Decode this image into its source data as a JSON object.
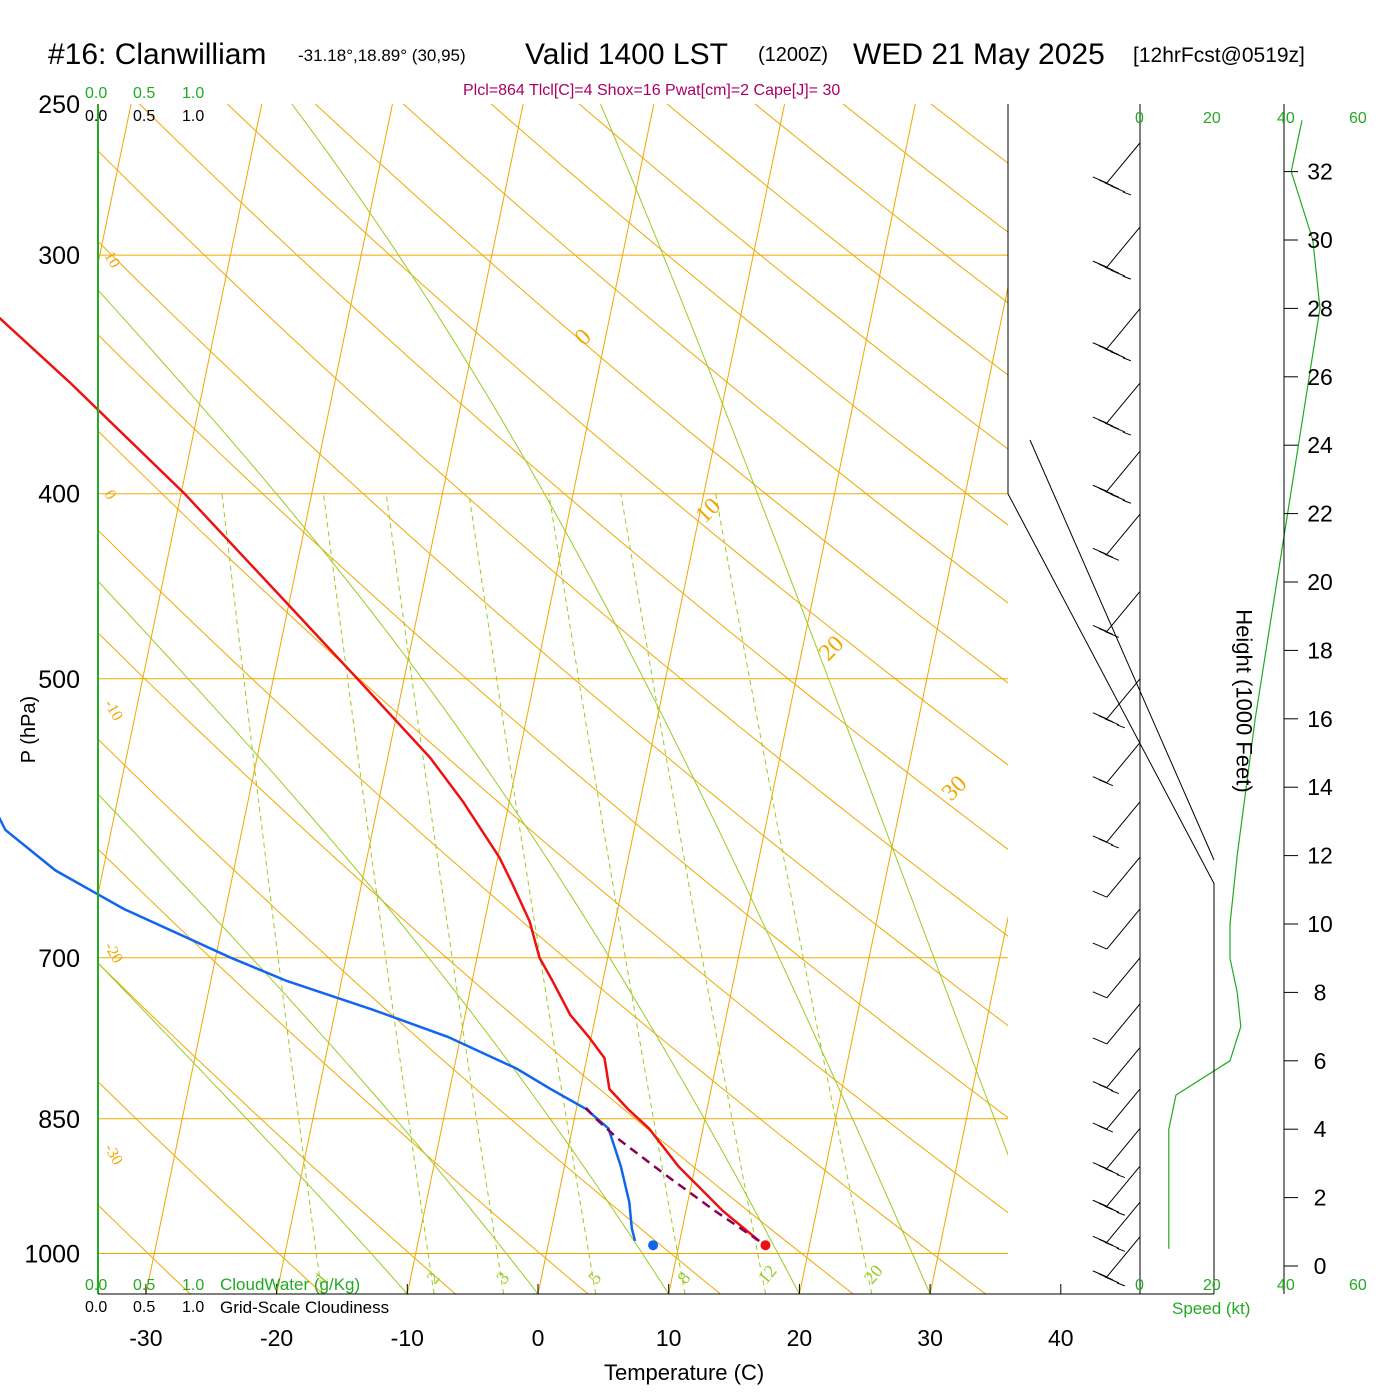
{
  "header": {
    "station": "#16: Clanwilliam",
    "coords": "-31.18°,18.89° (30,95)",
    "valid": "Valid 1400 LST",
    "utc": "(1200Z)",
    "date": "WED 21 May 2025",
    "forecast": "[12hrFcst@0519z]",
    "indices": "Plcl=864 Tlcl[C]=4 Shox=16 Pwat[cm]=2 Cape[J]= 30"
  },
  "colors": {
    "temperature": "#ee1111",
    "dewpoint": "#1166ee",
    "parcel": "#880055",
    "isotherm": "#f0a800",
    "mixing_ratio": "#99cc22",
    "cloud_axis": "#22aa22",
    "indices_text": "#aa0066"
  },
  "chart_data": {
    "type": "line",
    "subtype": "skew-T log-P",
    "xlabel": "Temperature (C)",
    "ylabel": "P (hPa)",
    "y2label": "Height (1000 Feet)",
    "x_ticks": [
      -30,
      -20,
      -10,
      0,
      10,
      20,
      30,
      40
    ],
    "p_ticks": [
      250,
      300,
      400,
      500,
      700,
      850,
      1000
    ],
    "height_ticks": [
      0,
      2,
      4,
      6,
      8,
      10,
      12,
      14,
      16,
      18,
      20,
      22,
      24,
      26,
      28,
      30,
      32
    ],
    "skewed_isotherm_labels": [
      {
        "text": "10",
        "temp": 10,
        "p": 300,
        "side": "left"
      },
      {
        "text": "0",
        "temp": 0,
        "p": 400,
        "side": "left"
      },
      {
        "text": "-10",
        "temp": -10,
        "p": 515,
        "side": "left"
      },
      {
        "text": "-20",
        "temp": -20,
        "p": 690,
        "side": "left"
      },
      {
        "text": "-30",
        "temp": -30,
        "p": 880,
        "side": "left"
      },
      {
        "text": "0",
        "temp": 0,
        "p": 335,
        "side": "right"
      },
      {
        "text": "10",
        "temp": 10,
        "p": 415,
        "side": "right"
      },
      {
        "text": "20",
        "temp": 20,
        "p": 490,
        "side": "right"
      },
      {
        "text": "30",
        "temp": 30,
        "p": 580,
        "side": "right"
      }
    ],
    "mixing_ratio_labels": [
      "1",
      "2",
      "3",
      "5",
      "8",
      "12",
      "20"
    ],
    "mixing_ratios_gkg": [
      1,
      2,
      3,
      5,
      8,
      12,
      20
    ],
    "temperature": {
      "name": "Temperature",
      "p": [
        985,
        950,
        900,
        860,
        840,
        820,
        790,
        770,
        750,
        720,
        700,
        670,
        640,
        620,
        580,
        550,
        500,
        450,
        400,
        350,
        300,
        265
      ],
      "t": [
        16.7,
        13.8,
        10.2,
        7.8,
        6.1,
        4.6,
        4.1,
        2.8,
        1.3,
        -0.2,
        -1.3,
        -2.2,
        -3.7,
        -4.8,
        -7.8,
        -10.5,
        -16.4,
        -23.0,
        -30.4,
        -39.6,
        -50.8,
        -59.5
      ]
    },
    "dewpoint": {
      "name": "Dewpoint",
      "p": [
        985,
        970,
        940,
        900,
        860,
        840,
        820,
        800,
        770,
        745,
        720,
        700,
        660,
        630,
        600,
        575,
        550,
        525,
        500,
        470,
        430,
        400,
        380,
        350,
        330,
        300,
        265
      ],
      "td": [
        7.2,
        6.9,
        6.6,
        5.8,
        4.7,
        2.9,
        0.1,
        -2.6,
        -8.0,
        -13.9,
        -20.5,
        -24.9,
        -33.3,
        -38.7,
        -42.7,
        -44.2,
        -46.3,
        -47.8,
        -49.5,
        -49.5,
        -50.6,
        -54.3,
        -59.1,
        -64.0,
        -67.6,
        -74.3,
        -82.2
      ]
    },
    "parcel": {
      "name": "Parcel",
      "p": [
        985,
        950,
        910,
        870,
        864,
        850,
        835
      ],
      "t": [
        16.7,
        13.2,
        9.3,
        5.4,
        4.9,
        3.7,
        2.6
      ]
    },
    "surface_markers": {
      "p": 990,
      "t": 17.2,
      "td": 8.6
    },
    "wind": {
      "pressures": [
        262,
        290,
        320,
        350,
        380,
        410,
        450,
        500,
        540,
        580,
        620,
        660,
        700,
        740,
        780,
        820,
        860,
        900,
        940,
        980
      ],
      "speeds_kt": [
        35,
        35,
        35,
        35,
        35,
        30,
        30,
        25,
        20,
        15,
        10,
        10,
        10,
        10,
        15,
        20,
        25,
        25,
        25,
        25
      ],
      "speed_profile_height_kft": [
        0.5,
        2,
        4,
        5,
        6,
        7,
        8,
        9,
        10,
        12,
        16,
        20,
        24,
        28,
        30,
        32,
        33.5
      ],
      "speed_profile_kt": [
        8,
        8,
        8,
        10,
        25,
        28,
        27,
        25,
        25,
        27,
        32,
        38,
        44,
        50,
        48,
        42,
        45
      ]
    },
    "axes": {
      "speed_ticks": [
        "0",
        "20",
        "40",
        "60"
      ],
      "speed_label": "Speed (kt)",
      "cloud_ticks": [
        "0.0",
        "0.5",
        "1.0"
      ],
      "cloudwater_label": "CloudWater (g/Kg)",
      "cloudiness_label": "Grid-Scale Cloudiness"
    }
  }
}
